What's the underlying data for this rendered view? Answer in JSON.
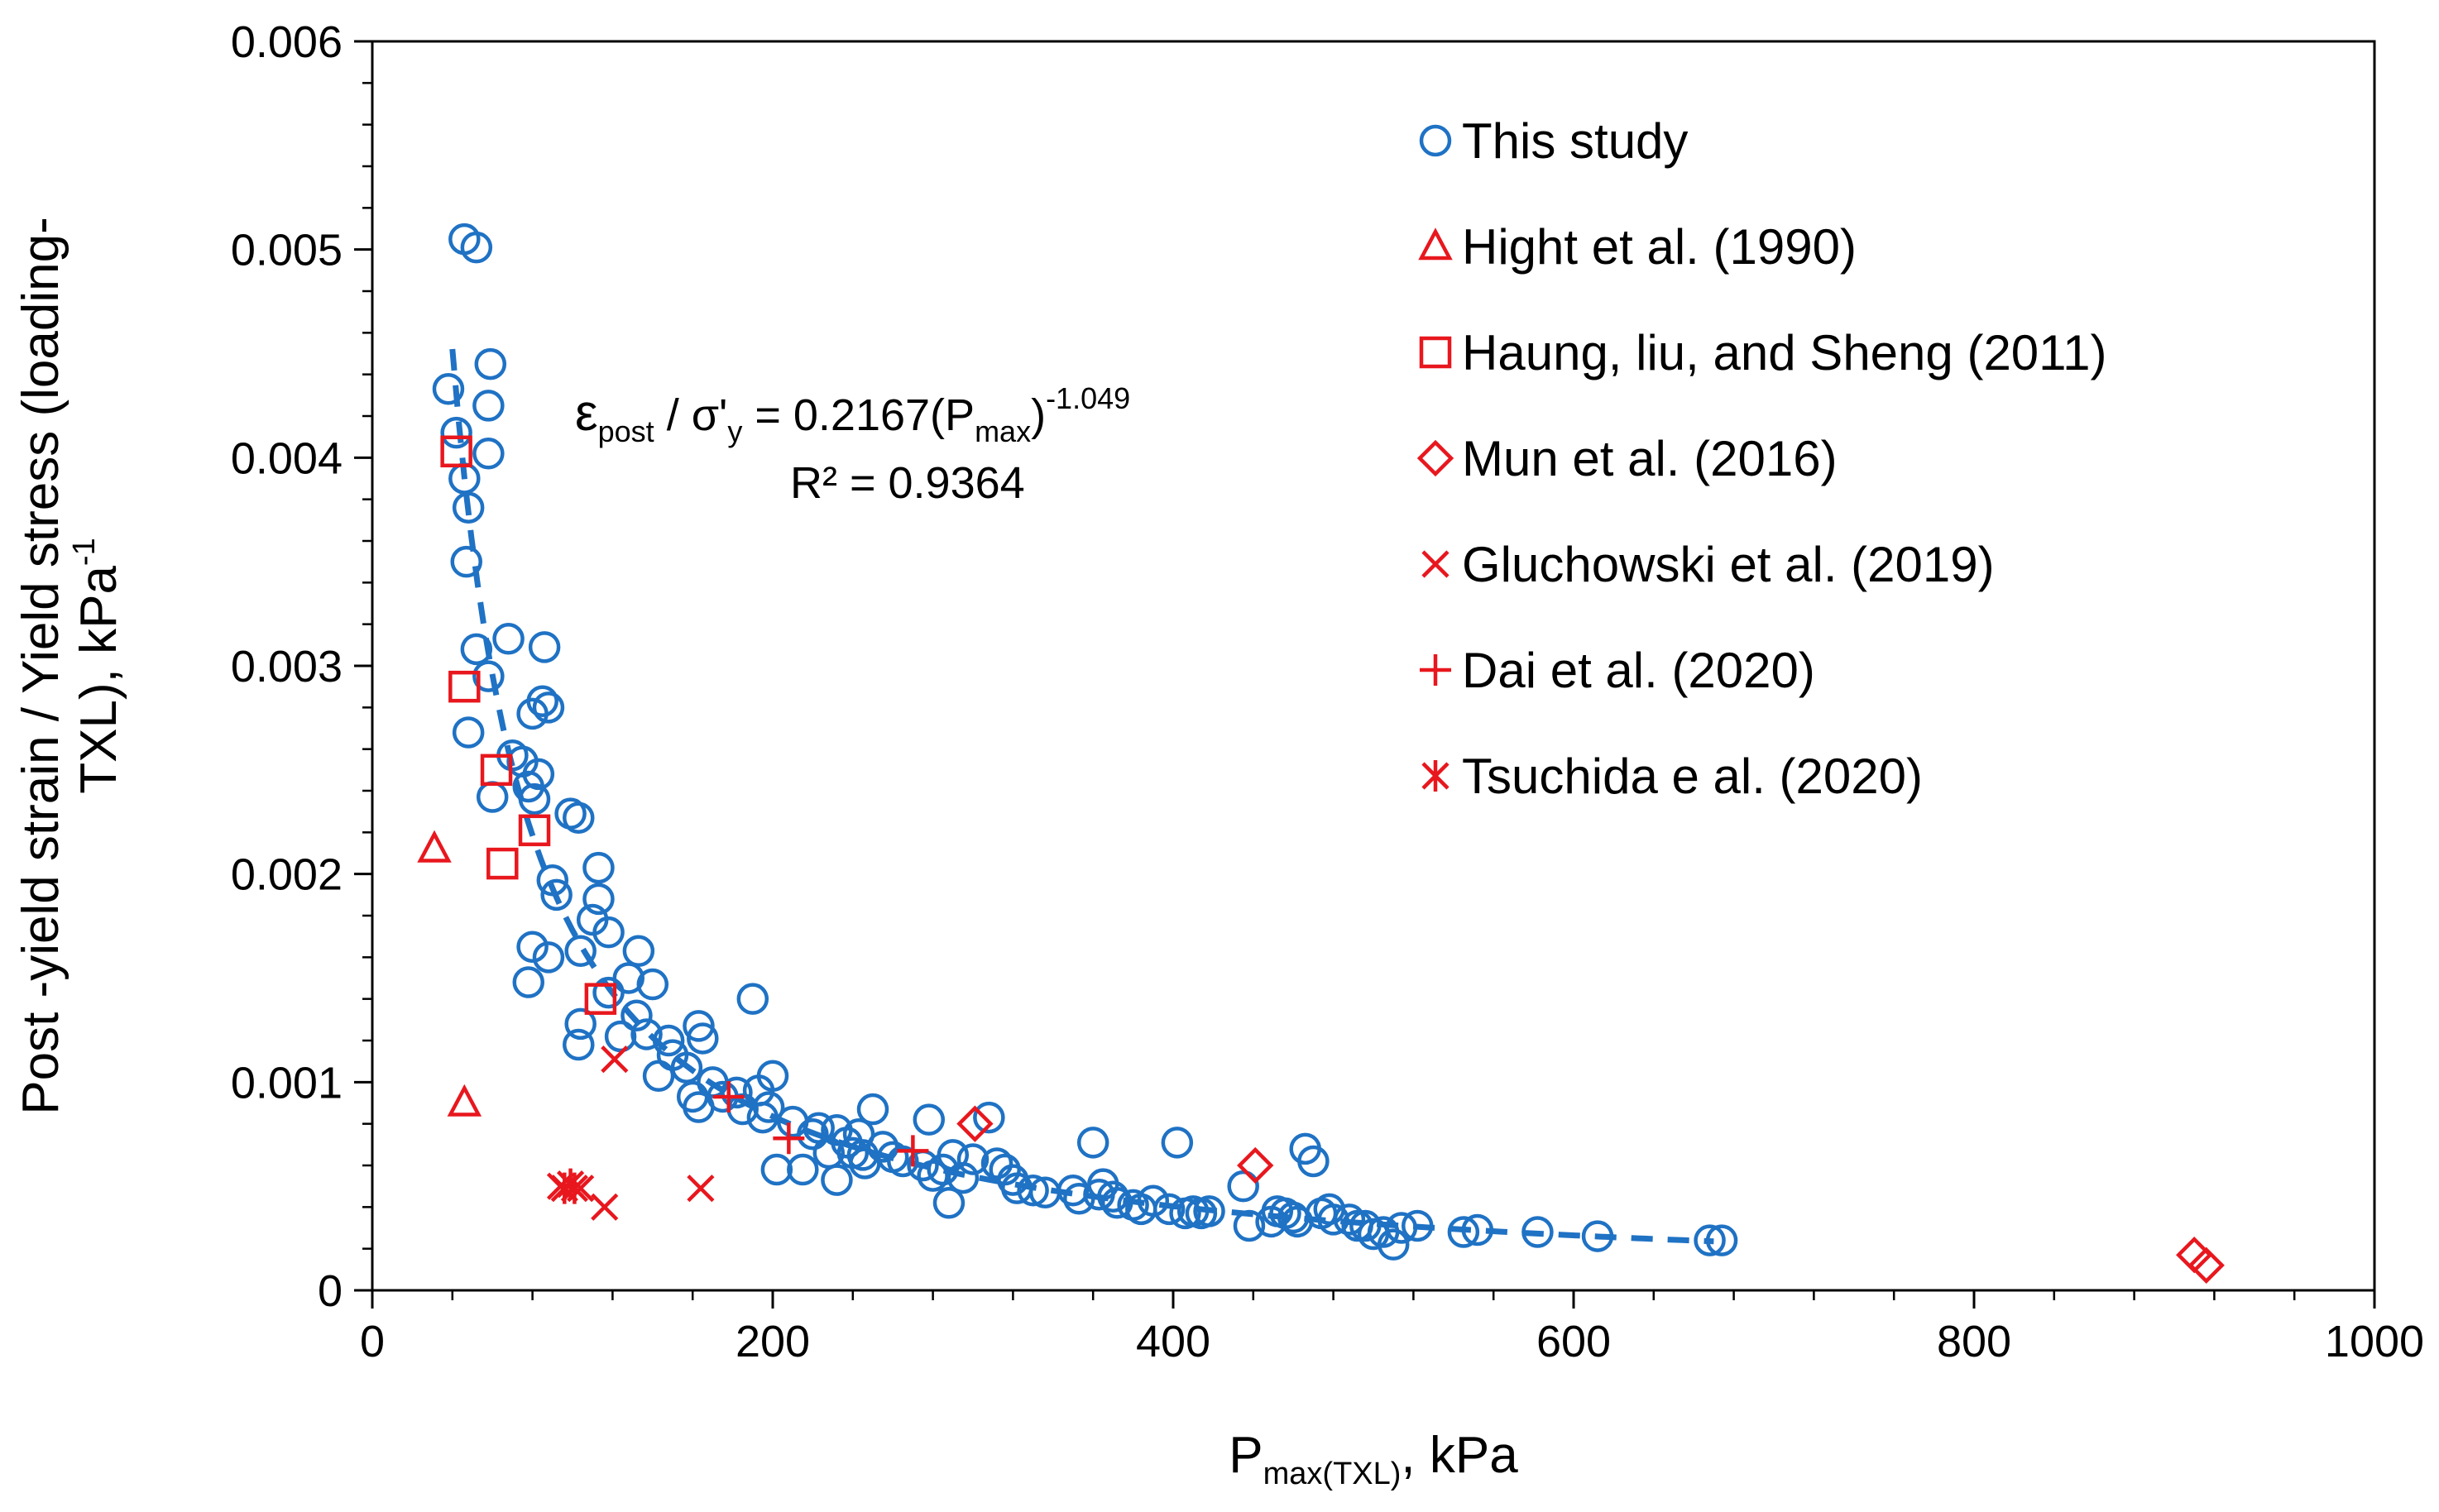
{
  "chart_data": {
    "type": "scatter",
    "xlabel": {
      "main": "P",
      "sub": "max(TXL)",
      "unit": ", kPa"
    },
    "ylabel": {
      "line1": "Post -yield strain / Yield stress (loading-",
      "line2": "TXL), kPa",
      "sup": "-1"
    },
    "xlim": [
      0,
      1000
    ],
    "ylim": [
      0,
      0.006
    ],
    "x_ticks": [
      "0",
      "200",
      "400",
      "600",
      "800",
      "1000"
    ],
    "y_ticks": [
      "0",
      "0.001",
      "0.002",
      "0.003",
      "0.004",
      "0.005",
      "0.006"
    ],
    "grid": false,
    "legend_position": "top-right",
    "trendline": {
      "type": "power",
      "a": 0.2167,
      "b": -1.049,
      "x_range": [
        40,
        670
      ],
      "equation": {
        "lhs_main1": "ε",
        "lhs_sub1": "post",
        "lhs_mid": " / σ'",
        "lhs_sub2": "y",
        "rhs_main": " = 0.2167(P",
        "rhs_sub": "max",
        "rhs_close": ")",
        "rhs_sup": "-1.049"
      },
      "r2_label": "R² = 0.9364"
    },
    "series": [
      {
        "name": "This study",
        "marker": "circle",
        "color": "#1f72c4",
        "points": [
          [
            46,
            0.00505
          ],
          [
            52,
            0.00501
          ],
          [
            38,
            0.00433
          ],
          [
            59,
            0.00445
          ],
          [
            58,
            0.00425
          ],
          [
            42,
            0.00412
          ],
          [
            58,
            0.00402
          ],
          [
            46,
            0.0039
          ],
          [
            48,
            0.00376
          ],
          [
            47,
            0.0035
          ],
          [
            68,
            0.00313
          ],
          [
            86,
            0.00309
          ],
          [
            52,
            0.00308
          ],
          [
            58,
            0.00295
          ],
          [
            48,
            0.00268
          ],
          [
            85,
            0.00283
          ],
          [
            80,
            0.00277
          ],
          [
            88,
            0.0028
          ],
          [
            70,
            0.00257
          ],
          [
            75,
            0.00254
          ],
          [
            83,
            0.00248
          ],
          [
            78,
            0.00242
          ],
          [
            60,
            0.00237
          ],
          [
            81,
            0.00236
          ],
          [
            99,
            0.00229
          ],
          [
            103,
            0.00227
          ],
          [
            113,
            0.00203
          ],
          [
            90,
            0.00197
          ],
          [
            92,
            0.0019
          ],
          [
            113,
            0.00188
          ],
          [
            110,
            0.00178
          ],
          [
            118,
            0.00172
          ],
          [
            80,
            0.00165
          ],
          [
            104,
            0.00163
          ],
          [
            88,
            0.0016
          ],
          [
            133,
            0.00163
          ],
          [
            78,
            0.00148
          ],
          [
            128,
            0.0015
          ],
          [
            140,
            0.00147
          ],
          [
            118,
            0.00143
          ],
          [
            132,
            0.00132
          ],
          [
            104,
            0.00128
          ],
          [
            124,
            0.00122
          ],
          [
            137,
            0.00123
          ],
          [
            148,
            0.0012
          ],
          [
            163,
            0.00127
          ],
          [
            165,
            0.00121
          ],
          [
            190,
            0.0014
          ],
          [
            103,
            0.00118
          ],
          [
            150,
            0.00113
          ],
          [
            157,
            0.00107
          ],
          [
            143,
            0.00103
          ],
          [
            170,
            0.001
          ],
          [
            160,
            0.00093
          ],
          [
            163,
            0.00088
          ],
          [
            175,
            0.00093
          ],
          [
            182,
            0.00095
          ],
          [
            193,
            0.00096
          ],
          [
            200,
            0.00103
          ],
          [
            185,
            0.00087
          ],
          [
            195,
            0.00083
          ],
          [
            198,
            0.00088
          ],
          [
            210,
            0.00081
          ],
          [
            220,
            0.00075
          ],
          [
            223,
            0.00078
          ],
          [
            232,
            0.00077
          ],
          [
            237,
            0.00071
          ],
          [
            243,
            0.00075
          ],
          [
            250,
            0.00087
          ],
          [
            255,
            0.00069
          ],
          [
            228,
            0.00066
          ],
          [
            240,
            0.00066
          ],
          [
            245,
            0.00065
          ],
          [
            246,
            0.00061
          ],
          [
            202,
            0.00058
          ],
          [
            215,
            0.00058
          ],
          [
            232,
            0.00053
          ],
          [
            260,
            0.00064
          ],
          [
            265,
            0.00062
          ],
          [
            275,
            0.0006
          ],
          [
            278,
            0.00082
          ],
          [
            290,
            0.00065
          ],
          [
            300,
            0.00063
          ],
          [
            308,
            0.00083
          ],
          [
            280,
            0.00055
          ],
          [
            285,
            0.00058
          ],
          [
            295,
            0.00054
          ],
          [
            312,
            0.00061
          ],
          [
            316,
            0.00058
          ],
          [
            320,
            0.00053
          ],
          [
            322,
            0.00049
          ],
          [
            330,
            0.00048
          ],
          [
            336,
            0.00047
          ],
          [
            288,
            0.00042
          ],
          [
            350,
            0.00048
          ],
          [
            353,
            0.00044
          ],
          [
            360,
            0.00071
          ],
          [
            363,
            0.00046
          ],
          [
            365,
            0.00051
          ],
          [
            370,
            0.00045
          ],
          [
            372,
            0.00042
          ],
          [
            380,
            0.00041
          ],
          [
            384,
            0.00039
          ],
          [
            390,
            0.00043
          ],
          [
            398,
            0.00039
          ],
          [
            402,
            0.00071
          ],
          [
            406,
            0.00037
          ],
          [
            410,
            0.00038
          ],
          [
            414,
            0.00037
          ],
          [
            418,
            0.00038
          ],
          [
            435,
            0.0005
          ],
          [
            438,
            0.00031
          ],
          [
            449,
            0.00033
          ],
          [
            452,
            0.00038
          ],
          [
            456,
            0.00037
          ],
          [
            460,
            0.00035
          ],
          [
            462,
            0.00033
          ],
          [
            466,
            0.00068
          ],
          [
            470,
            0.00062
          ],
          [
            474,
            0.00037
          ],
          [
            478,
            0.00039
          ],
          [
            480,
            0.00034
          ],
          [
            488,
            0.00034
          ],
          [
            492,
            0.00031
          ],
          [
            496,
            0.00031
          ],
          [
            500,
            0.00027
          ],
          [
            505,
            0.00028
          ],
          [
            510,
            0.00022
          ],
          [
            514,
            0.0003
          ],
          [
            522,
            0.00031
          ],
          [
            545,
            0.00028
          ],
          [
            552,
            0.00029
          ],
          [
            582,
            0.00028
          ],
          [
            612,
            0.00026
          ],
          [
            668,
            0.00024
          ],
          [
            674,
            0.00024
          ]
        ]
      },
      {
        "name": "Hight et al. (1990)",
        "marker": "triangle",
        "color": "#e8171e",
        "points": [
          [
            31,
            0.00212
          ],
          [
            46,
            0.0009
          ]
        ]
      },
      {
        "name": "Haung, liu, and Sheng (2011)",
        "marker": "square",
        "color": "#e8171e",
        "points": [
          [
            42,
            0.00403
          ],
          [
            46,
            0.0029
          ],
          [
            62,
            0.0025
          ],
          [
            65,
            0.00205
          ],
          [
            81,
            0.00221
          ],
          [
            114,
            0.0014
          ]
        ]
      },
      {
        "name": "Mun et al. (2016)",
        "marker": "diamond",
        "color": "#e8171e",
        "points": [
          [
            301,
            0.0008
          ],
          [
            441,
            0.0006
          ],
          [
            910,
            0.00017
          ],
          [
            916,
            0.00012
          ]
        ]
      },
      {
        "name": "Gluchowski et al. (2019)",
        "marker": "x",
        "color": "#e8171e",
        "points": [
          [
            121,
            0.00111
          ],
          [
            94,
            0.0005
          ],
          [
            104,
            0.00049
          ],
          [
            164,
            0.00049
          ],
          [
            116,
            0.0004
          ]
        ]
      },
      {
        "name": "Dai et al. (2020)",
        "marker": "plus",
        "color": "#e8171e",
        "points": [
          [
            178,
            0.00093
          ],
          [
            208,
            0.00073
          ],
          [
            270,
            0.00067
          ]
        ]
      },
      {
        "name": "Tsuchida e al. (2020)",
        "marker": "asterisk",
        "color": "#e8171e",
        "points": [
          [
            96,
            0.00049
          ],
          [
            101,
            0.00049
          ],
          [
            99,
            0.00051
          ]
        ]
      }
    ]
  }
}
